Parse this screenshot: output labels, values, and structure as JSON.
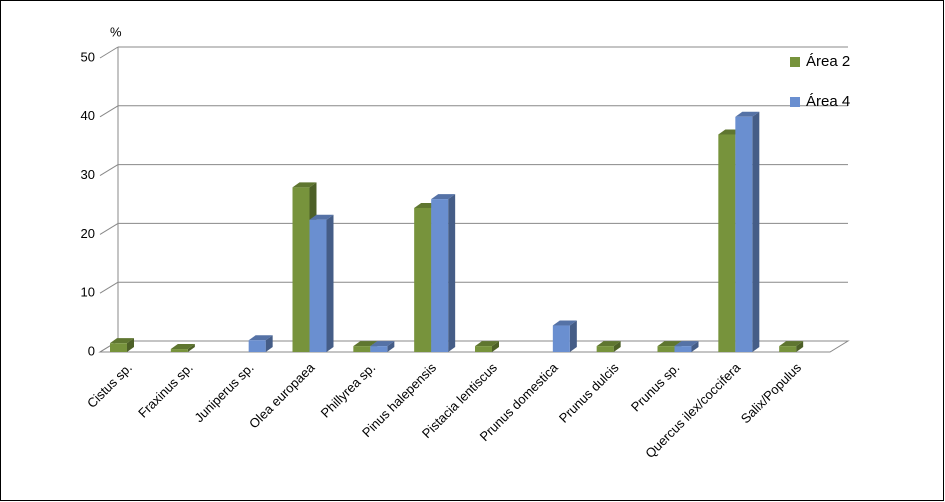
{
  "chart_data": {
    "type": "bar3d",
    "y_label": "%",
    "categories": [
      "Cistus sp.",
      "Fraxinus sp.",
      "Juniperus sp.",
      "Olea europaea",
      "Phillyrea sp.",
      "Pinus halepensis",
      "Pistacia lentiscus",
      "Prunus domestica",
      "Prunus dulcis",
      "Prunus sp.",
      "Quercus ilex/coccifera",
      "Salix/Populus"
    ],
    "series": [
      {
        "name": "Área 2",
        "color": "#77933c",
        "values": [
          1.5,
          0.5,
          null,
          28,
          1,
          24.5,
          1,
          null,
          1,
          1,
          37,
          1
        ]
      },
      {
        "name": "Área 4",
        "color": "#6a8fd0",
        "values": [
          null,
          null,
          2,
          22.5,
          1,
          26,
          null,
          4.5,
          null,
          1,
          40,
          null
        ]
      }
    ],
    "ylim": [
      0,
      50
    ],
    "yticks": [
      0,
      10,
      20,
      30,
      40,
      50
    ],
    "grid": true
  }
}
